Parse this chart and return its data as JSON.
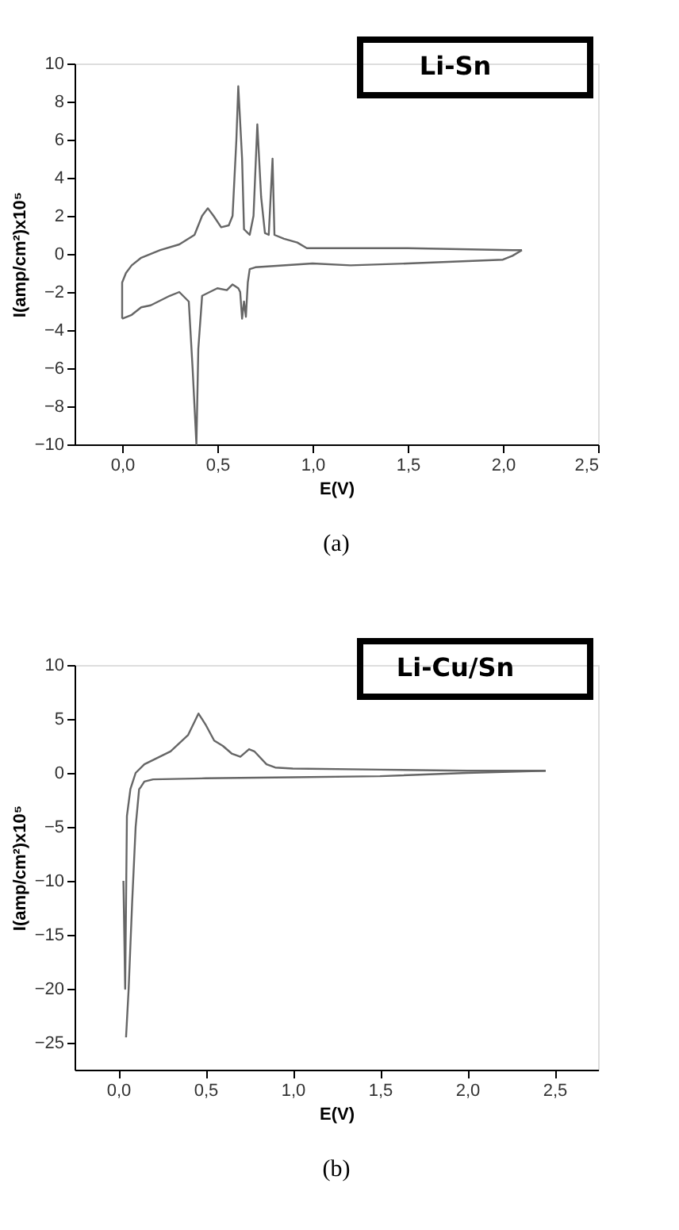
{
  "chart_data": [
    {
      "type": "line",
      "title": "Li-Sn",
      "xlabel": "E(V)",
      "ylabel": "I(amp/cm²)x10⁵",
      "annotations": [
        "(a)"
      ],
      "grid": false,
      "marker": "none",
      "line_style": "solid",
      "xlim": [
        -0.25,
        2.5
      ],
      "ylim": [
        -10,
        10
      ],
      "xticks": [
        {
          "value": 0,
          "label": "0,0"
        },
        {
          "value": 0.5,
          "label": "0,5"
        },
        {
          "value": 1,
          "label": "1,0"
        },
        {
          "value": 1.5,
          "label": "1,5"
        },
        {
          "value": 2,
          "label": "2,0"
        },
        {
          "value": 2.5,
          "label": "2,5"
        }
      ],
      "yticks": [
        -10,
        -8,
        -6,
        -4,
        -2,
        0,
        2,
        4,
        6,
        8,
        10
      ],
      "series": [
        {
          "color": "#666666",
          "x": [
            2.1,
            2.05,
            2.0,
            1.5,
            1.2,
            1.0,
            0.7,
            0.67,
            0.66,
            0.65,
            0.64,
            0.63,
            0.62,
            0.61,
            0.58,
            0.55,
            0.5,
            0.46,
            0.42,
            0.4,
            0.39,
            0.38,
            0.37,
            0.35,
            0.3,
            0.25,
            0.15,
            0.1,
            0.05,
            0.0
          ],
          "values": [
            0.2,
            -0.1,
            -0.3,
            -0.5,
            -0.6,
            -0.5,
            -0.7,
            -0.8,
            -1.5,
            -3.3,
            -2.5,
            -3.4,
            -2.0,
            -1.8,
            -1.6,
            -1.9,
            -1.8,
            -2.0,
            -2.2,
            -5,
            -10,
            -8,
            -6,
            -2.5,
            -2.0,
            -2.2,
            -2.7,
            -2.8,
            -3.2,
            -3.4
          ]
        },
        {
          "color": "#666666",
          "x": [
            0.0,
            0.0,
            0.02,
            0.05,
            0.1,
            0.2,
            0.3,
            0.38,
            0.42,
            0.45,
            0.48,
            0.52,
            0.56,
            0.58,
            0.6,
            0.61,
            0.63,
            0.64,
            0.67,
            0.69,
            0.71,
            0.73,
            0.75,
            0.77,
            0.79,
            0.8,
            0.85,
            0.92,
            0.97,
            1.5,
            2.05,
            2.1
          ],
          "values": [
            -3.4,
            -1.5,
            -1.0,
            -0.6,
            -0.2,
            0.2,
            0.5,
            1.0,
            2.0,
            2.4,
            2.0,
            1.4,
            1.5,
            2.0,
            6,
            8.8,
            5,
            1.3,
            1.0,
            2,
            6.8,
            3,
            1.1,
            1.0,
            5.0,
            1.0,
            0.8,
            0.6,
            0.3,
            0.3,
            0.2,
            0.2
          ]
        }
      ]
    },
    {
      "type": "line",
      "title": "Li-Cu/Sn",
      "xlabel": "E(V)",
      "ylabel": "I(amp/cm²)x10⁵",
      "annotations": [
        "(b)"
      ],
      "grid": false,
      "marker": "none",
      "line_style": "solid",
      "xlim": [
        -0.25,
        2.75
      ],
      "ylim": [
        -27.5,
        10
      ],
      "xticks": [
        {
          "value": 0,
          "label": "0,0"
        },
        {
          "value": 0.5,
          "label": "0,5"
        },
        {
          "value": 1,
          "label": "1,0"
        },
        {
          "value": 1.5,
          "label": "1,5"
        },
        {
          "value": 2,
          "label": "2,0"
        },
        {
          "value": 2.5,
          "label": "2,5"
        }
      ],
      "yticks": [
        -25,
        -20,
        -15,
        -10,
        -5,
        0,
        5,
        10
      ],
      "series": [
        {
          "color": "#666666",
          "x": [
            2.45,
            2.0,
            1.5,
            1.0,
            0.5,
            0.2,
            0.15,
            0.13,
            0.12,
            0.1,
            0.08,
            0.06,
            0.045
          ],
          "values": [
            0.2,
            0.0,
            -0.3,
            -0.4,
            -0.5,
            -0.6,
            -0.8,
            -1.3,
            -1.5,
            -5,
            -12,
            -20,
            -24.5
          ]
        },
        {
          "color": "#666666",
          "x": [
            0.03,
            0.04,
            0.05,
            0.07,
            0.1,
            0.15,
            0.3,
            0.4,
            0.46,
            0.5,
            0.55,
            0.6,
            0.65,
            0.7,
            0.75,
            0.78,
            0.85,
            0.9,
            1.0,
            1.5,
            2.0,
            2.45
          ],
          "values": [
            -10,
            -20,
            -4,
            -1.5,
            0,
            0.8,
            2,
            3.5,
            5.5,
            4.5,
            3,
            2.5,
            1.8,
            1.5,
            2.2,
            2.0,
            0.8,
            0.5,
            0.4,
            0.3,
            0.2,
            0.2
          ]
        }
      ]
    }
  ]
}
